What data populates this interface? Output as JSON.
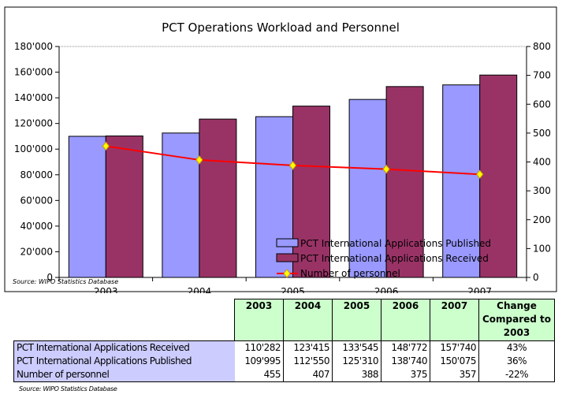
{
  "chart_data": {
    "type": "bar+line",
    "title": "PCT Operations Workload and Personnel",
    "categories": [
      "2003",
      "2004",
      "2005",
      "2006",
      "2007"
    ],
    "series": [
      {
        "name": "PCT International Applications Published",
        "type": "bar",
        "axis": "left",
        "color": "#9999ff",
        "values": [
          109995,
          112550,
          125310,
          138740,
          150075
        ]
      },
      {
        "name": "PCT International Applications Received",
        "type": "bar",
        "axis": "left",
        "color": "#993366",
        "values": [
          110282,
          123415,
          133545,
          148772,
          157740
        ]
      },
      {
        "name": "Number of personnel",
        "type": "line",
        "axis": "right",
        "color": "#ff0000",
        "marker_color": "#ffff00",
        "values": [
          455,
          407,
          388,
          375,
          357
        ]
      }
    ],
    "left_axis": {
      "ylim": [
        0,
        180000
      ],
      "ticks": [
        "0",
        "20'000",
        "40'000",
        "60'000",
        "80'000",
        "100'000",
        "120'000",
        "140'000",
        "160'000",
        "180'000"
      ]
    },
    "right_axis": {
      "ylim": [
        0,
        800
      ],
      "ticks": [
        "0",
        "100",
        "200",
        "300",
        "400",
        "500",
        "600",
        "700",
        "800"
      ]
    },
    "legend_placement": "bottom-right",
    "grid": false,
    "source": "Source: WIPO Statistics Database"
  },
  "table": {
    "headers": [
      "2003",
      "2004",
      "2005",
      "2006",
      "2007",
      "Change Compared to 2003"
    ],
    "rows": [
      {
        "label": "PCT International Applications Received",
        "values": [
          "110'282",
          "123'415",
          "133'545",
          "148'772",
          "157'740"
        ],
        "change": "43%"
      },
      {
        "label": "PCT International Applications Published",
        "values": [
          "109'995",
          "112'550",
          "125'310",
          "138'740",
          "150'075"
        ],
        "change": "36%"
      },
      {
        "label": "Number of personnel",
        "values": [
          "455",
          "407",
          "388",
          "375",
          "357"
        ],
        "change": "-22%"
      }
    ],
    "source": "Source: WIPO Statistics Database"
  }
}
